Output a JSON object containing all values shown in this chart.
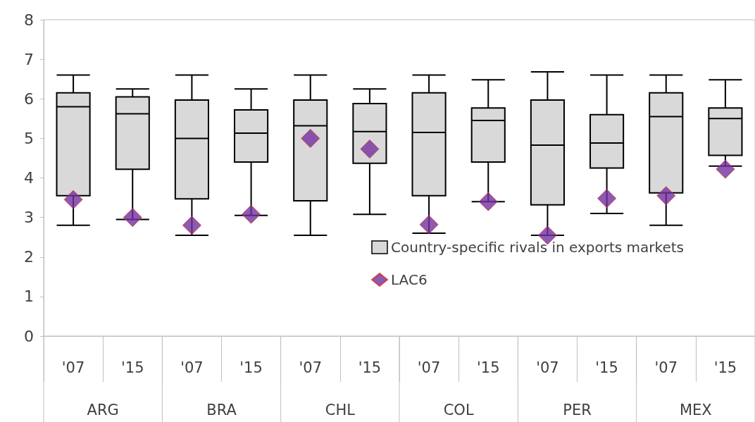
{
  "chart_data": {
    "type": "box",
    "categories": [
      "'07",
      "'15",
      "'07",
      "'15",
      "'07",
      "'15",
      "'07",
      "'15",
      "'07",
      "'15",
      "'07",
      "'15"
    ],
    "annotations": [
      "ARG",
      "BRA",
      "CHL",
      "COL",
      "PER",
      "MEX"
    ],
    "series": [
      {
        "name": "Country-specific rivals in exports markets",
        "color": "#d9d9d9",
        "boxes": [
          {
            "low": 2.8,
            "q1": 3.55,
            "median": 5.8,
            "q3": 6.15,
            "high": 6.6
          },
          {
            "low": 2.95,
            "q1": 4.22,
            "median": 5.62,
            "q3": 6.05,
            "high": 6.25
          },
          {
            "low": 2.55,
            "q1": 3.47,
            "median": 5.0,
            "q3": 5.97,
            "high": 6.6
          },
          {
            "low": 3.05,
            "q1": 4.4,
            "median": 5.13,
            "q3": 5.72,
            "high": 6.25
          },
          {
            "low": 2.55,
            "q1": 3.42,
            "median": 5.32,
            "q3": 5.97,
            "high": 6.6
          },
          {
            "low": 3.08,
            "q1": 4.37,
            "median": 5.17,
            "q3": 5.88,
            "high": 6.25
          },
          {
            "low": 2.6,
            "q1": 3.55,
            "median": 5.15,
            "q3": 6.15,
            "high": 6.6
          },
          {
            "low": 3.4,
            "q1": 4.4,
            "median": 5.45,
            "q3": 5.77,
            "high": 6.48
          },
          {
            "low": 2.55,
            "q1": 3.32,
            "median": 4.83,
            "q3": 5.97,
            "high": 6.68
          },
          {
            "low": 3.1,
            "q1": 4.25,
            "median": 4.88,
            "q3": 5.6,
            "high": 6.6
          },
          {
            "low": 2.8,
            "q1": 3.62,
            "median": 5.55,
            "q3": 6.15,
            "high": 6.6
          },
          {
            "low": 4.3,
            "q1": 4.57,
            "median": 5.5,
            "q3": 5.77,
            "high": 6.48
          }
        ]
      },
      {
        "name": "LAC6",
        "type": "scatter",
        "color": "#7030a0",
        "marker": "diamond",
        "values": [
          3.45,
          3.0,
          2.8,
          3.08,
          5.0,
          4.73,
          2.82,
          3.4,
          2.55,
          3.48,
          3.55,
          4.22
        ]
      }
    ],
    "ylim": [
      0,
      8
    ],
    "yticks": [
      0,
      1,
      2,
      3,
      4,
      5,
      6,
      7,
      8
    ],
    "grid": false,
    "legend": "right"
  }
}
